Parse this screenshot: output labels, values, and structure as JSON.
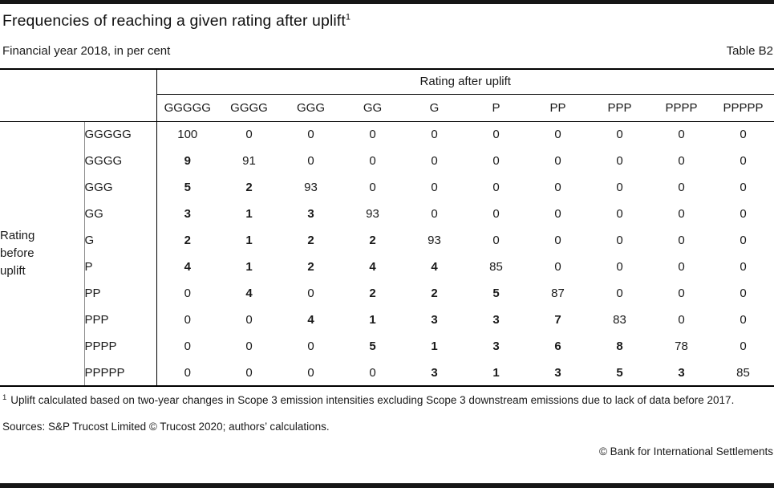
{
  "page": {
    "title": "Frequencies of reaching a given rating after uplift",
    "title_superscript": "1",
    "subtitle": "Financial year 2018, in per cent",
    "table_ref": "Table B2",
    "footnote_marker": "1",
    "footnote": "Uplift calculated based on two-year changes in Scope 3 emission intensities excluding Scope 3 downstream emissions due to lack of data before 2017.",
    "sources": "Sources: S&P Trucost Limited © Trucost 2020; authors’ calculations.",
    "copyright": "© Bank for International Settlements"
  },
  "table": {
    "col_group_header": "Rating after uplift",
    "row_group_header": "Rating before uplift",
    "row_group_header_lines": [
      "Rating",
      "before",
      "uplift"
    ],
    "columns": [
      "GGGGG",
      "GGGG",
      "GGG",
      "GG",
      "G",
      "P",
      "PP",
      "PPP",
      "PPPP",
      "PPPPP"
    ],
    "rows": [
      {
        "label": "GGGGG",
        "values": [
          100,
          0,
          0,
          0,
          0,
          0,
          0,
          0,
          0,
          0
        ],
        "bold": [
          0,
          0,
          0,
          0,
          0,
          0,
          0,
          0,
          0,
          0
        ]
      },
      {
        "label": "GGGG",
        "values": [
          9,
          91,
          0,
          0,
          0,
          0,
          0,
          0,
          0,
          0
        ],
        "bold": [
          1,
          0,
          0,
          0,
          0,
          0,
          0,
          0,
          0,
          0
        ]
      },
      {
        "label": "GGG",
        "values": [
          5,
          2,
          93,
          0,
          0,
          0,
          0,
          0,
          0,
          0
        ],
        "bold": [
          1,
          1,
          0,
          0,
          0,
          0,
          0,
          0,
          0,
          0
        ]
      },
      {
        "label": "GG",
        "values": [
          3,
          1,
          3,
          93,
          0,
          0,
          0,
          0,
          0,
          0
        ],
        "bold": [
          1,
          1,
          1,
          0,
          0,
          0,
          0,
          0,
          0,
          0
        ]
      },
      {
        "label": "G",
        "values": [
          2,
          1,
          2,
          2,
          93,
          0,
          0,
          0,
          0,
          0
        ],
        "bold": [
          1,
          1,
          1,
          1,
          0,
          0,
          0,
          0,
          0,
          0
        ]
      },
      {
        "label": "P",
        "values": [
          4,
          1,
          2,
          4,
          4,
          85,
          0,
          0,
          0,
          0
        ],
        "bold": [
          1,
          1,
          1,
          1,
          1,
          0,
          0,
          0,
          0,
          0
        ]
      },
      {
        "label": "PP",
        "values": [
          0,
          4,
          0,
          2,
          2,
          5,
          87,
          0,
          0,
          0
        ],
        "bold": [
          0,
          1,
          0,
          1,
          1,
          1,
          0,
          0,
          0,
          0
        ]
      },
      {
        "label": "PPP",
        "values": [
          0,
          0,
          4,
          1,
          3,
          3,
          7,
          83,
          0,
          0
        ],
        "bold": [
          0,
          0,
          1,
          1,
          1,
          1,
          1,
          0,
          0,
          0
        ]
      },
      {
        "label": "PPPP",
        "values": [
          0,
          0,
          0,
          5,
          1,
          3,
          6,
          8,
          78,
          0
        ],
        "bold": [
          0,
          0,
          0,
          1,
          1,
          1,
          1,
          1,
          0,
          0
        ]
      },
      {
        "label": "PPPPP",
        "values": [
          0,
          0,
          0,
          0,
          3,
          1,
          3,
          5,
          3,
          85
        ],
        "bold": [
          0,
          0,
          0,
          0,
          1,
          1,
          1,
          1,
          1,
          0
        ]
      }
    ]
  },
  "chart_data": {
    "type": "table",
    "title": "Frequencies of reaching a given rating after uplift",
    "subtitle": "Financial year 2018, in per cent",
    "row_dimension": "Rating before uplift",
    "column_dimension": "Rating after uplift",
    "columns": [
      "GGGGG",
      "GGGG",
      "GGG",
      "GG",
      "G",
      "P",
      "PP",
      "PPP",
      "PPPP",
      "PPPPP"
    ],
    "rows": [
      "GGGGG",
      "GGGG",
      "GGG",
      "GG",
      "G",
      "P",
      "PP",
      "PPP",
      "PPPP",
      "PPPPP"
    ],
    "values": [
      [
        100,
        0,
        0,
        0,
        0,
        0,
        0,
        0,
        0,
        0
      ],
      [
        9,
        91,
        0,
        0,
        0,
        0,
        0,
        0,
        0,
        0
      ],
      [
        5,
        2,
        93,
        0,
        0,
        0,
        0,
        0,
        0,
        0
      ],
      [
        3,
        1,
        3,
        93,
        0,
        0,
        0,
        0,
        0,
        0
      ],
      [
        2,
        1,
        2,
        2,
        93,
        0,
        0,
        0,
        0,
        0
      ],
      [
        4,
        1,
        2,
        4,
        4,
        85,
        0,
        0,
        0,
        0
      ],
      [
        0,
        4,
        0,
        2,
        2,
        5,
        87,
        0,
        0,
        0
      ],
      [
        0,
        0,
        4,
        1,
        3,
        3,
        7,
        83,
        0,
        0
      ],
      [
        0,
        0,
        0,
        5,
        1,
        3,
        6,
        8,
        78,
        0
      ],
      [
        0,
        0,
        0,
        0,
        3,
        1,
        3,
        5,
        3,
        85
      ]
    ]
  },
  "colors": {
    "text": "#1a1a1a",
    "rule": "#000000",
    "inner_rule": "#8c8c8c",
    "edge_bar": "#161616"
  }
}
